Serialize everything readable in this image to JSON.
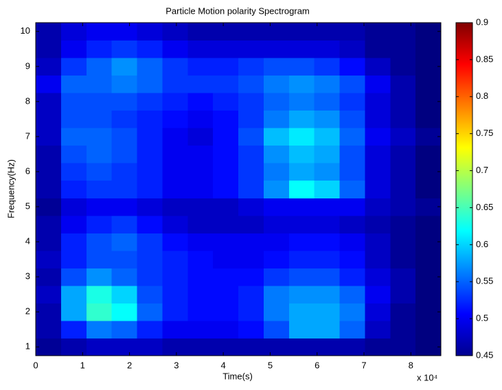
{
  "chart_data": {
    "type": "heatmap",
    "title": "Particle Motion polarity Spectrogram",
    "x_label": "Time(s)",
    "y_label": "Frequency(Hz)",
    "x_multiplier": "x 10⁴",
    "xlim": [
      0,
      86400
    ],
    "ylim": [
      0.75,
      10.25
    ],
    "xticks": [
      {
        "value": 0,
        "label": "0"
      },
      {
        "value": 10000,
        "label": "1"
      },
      {
        "value": 20000,
        "label": "2"
      },
      {
        "value": 30000,
        "label": "3"
      },
      {
        "value": 40000,
        "label": "4"
      },
      {
        "value": 50000,
        "label": "5"
      },
      {
        "value": 60000,
        "label": "6"
      },
      {
        "value": 70000,
        "label": "7"
      },
      {
        "value": 80000,
        "label": "8"
      }
    ],
    "yticks": [
      1,
      2,
      3,
      4,
      5,
      6,
      7,
      8,
      9,
      10
    ],
    "clim": [
      0.45,
      0.9
    ],
    "cticks": [
      0.45,
      0.5,
      0.55,
      0.6,
      0.65,
      0.7,
      0.75,
      0.8,
      0.85,
      0.9
    ],
    "colormap": "jet",
    "x_edges": [
      0,
      5400,
      10800,
      16200,
      21600,
      27000,
      32400,
      37800,
      43200,
      48600,
      54000,
      59400,
      64800,
      70200,
      75600,
      81000,
      86400
    ],
    "y_edges": [
      0.75,
      1.25,
      1.75,
      2.25,
      2.75,
      3.25,
      3.75,
      4.25,
      4.75,
      5.25,
      5.75,
      6.25,
      6.75,
      7.25,
      7.75,
      8.25,
      8.75,
      9.25,
      9.75,
      10.25
    ],
    "z": [
      [
        0.46,
        0.47,
        0.48,
        0.48,
        0.48,
        0.47,
        0.47,
        0.47,
        0.47,
        0.47,
        0.47,
        0.47,
        0.47,
        0.46,
        0.46,
        0.45
      ],
      [
        0.47,
        0.52,
        0.56,
        0.55,
        0.52,
        0.5,
        0.5,
        0.5,
        0.51,
        0.54,
        0.58,
        0.58,
        0.55,
        0.48,
        0.46,
        0.45
      ],
      [
        0.47,
        0.58,
        0.64,
        0.62,
        0.55,
        0.52,
        0.51,
        0.51,
        0.52,
        0.56,
        0.58,
        0.58,
        0.56,
        0.49,
        0.46,
        0.45
      ],
      [
        0.48,
        0.58,
        0.63,
        0.6,
        0.54,
        0.52,
        0.51,
        0.51,
        0.52,
        0.56,
        0.57,
        0.57,
        0.55,
        0.5,
        0.47,
        0.45
      ],
      [
        0.47,
        0.54,
        0.57,
        0.55,
        0.53,
        0.52,
        0.51,
        0.51,
        0.51,
        0.53,
        0.54,
        0.54,
        0.52,
        0.49,
        0.47,
        0.45
      ],
      [
        0.48,
        0.52,
        0.54,
        0.54,
        0.53,
        0.52,
        0.51,
        0.5,
        0.5,
        0.51,
        0.52,
        0.52,
        0.51,
        0.48,
        0.46,
        0.45
      ],
      [
        0.47,
        0.52,
        0.54,
        0.55,
        0.53,
        0.51,
        0.5,
        0.5,
        0.5,
        0.5,
        0.51,
        0.51,
        0.5,
        0.48,
        0.46,
        0.45
      ],
      [
        0.47,
        0.5,
        0.52,
        0.53,
        0.51,
        0.49,
        0.48,
        0.48,
        0.48,
        0.49,
        0.49,
        0.49,
        0.48,
        0.47,
        0.46,
        0.45
      ],
      [
        0.46,
        0.49,
        0.5,
        0.5,
        0.49,
        0.48,
        0.48,
        0.48,
        0.49,
        0.5,
        0.5,
        0.5,
        0.5,
        0.48,
        0.47,
        0.46
      ],
      [
        0.47,
        0.52,
        0.53,
        0.53,
        0.52,
        0.5,
        0.5,
        0.51,
        0.53,
        0.57,
        0.62,
        0.6,
        0.55,
        0.49,
        0.47,
        0.45
      ],
      [
        0.47,
        0.53,
        0.54,
        0.53,
        0.52,
        0.5,
        0.5,
        0.51,
        0.53,
        0.56,
        0.58,
        0.57,
        0.54,
        0.49,
        0.47,
        0.45
      ],
      [
        0.47,
        0.54,
        0.55,
        0.54,
        0.52,
        0.5,
        0.5,
        0.51,
        0.53,
        0.57,
        0.59,
        0.58,
        0.54,
        0.49,
        0.47,
        0.45
      ],
      [
        0.48,
        0.55,
        0.55,
        0.54,
        0.52,
        0.5,
        0.49,
        0.51,
        0.54,
        0.59,
        0.61,
        0.59,
        0.55,
        0.5,
        0.48,
        0.46
      ],
      [
        0.48,
        0.54,
        0.54,
        0.53,
        0.52,
        0.51,
        0.5,
        0.51,
        0.53,
        0.56,
        0.58,
        0.57,
        0.54,
        0.49,
        0.47,
        0.45
      ],
      [
        0.48,
        0.54,
        0.54,
        0.54,
        0.53,
        0.52,
        0.51,
        0.52,
        0.53,
        0.55,
        0.56,
        0.55,
        0.53,
        0.49,
        0.47,
        0.45
      ],
      [
        0.5,
        0.55,
        0.55,
        0.56,
        0.55,
        0.53,
        0.53,
        0.53,
        0.54,
        0.56,
        0.57,
        0.56,
        0.54,
        0.5,
        0.47,
        0.45
      ],
      [
        0.48,
        0.53,
        0.55,
        0.57,
        0.55,
        0.53,
        0.52,
        0.52,
        0.53,
        0.54,
        0.54,
        0.53,
        0.51,
        0.48,
        0.46,
        0.45
      ],
      [
        0.47,
        0.5,
        0.52,
        0.53,
        0.52,
        0.5,
        0.49,
        0.49,
        0.49,
        0.49,
        0.49,
        0.49,
        0.48,
        0.46,
        0.46,
        0.45
      ],
      [
        0.47,
        0.49,
        0.5,
        0.5,
        0.49,
        0.48,
        0.47,
        0.47,
        0.47,
        0.47,
        0.47,
        0.47,
        0.47,
        0.46,
        0.46,
        0.45
      ]
    ]
  }
}
